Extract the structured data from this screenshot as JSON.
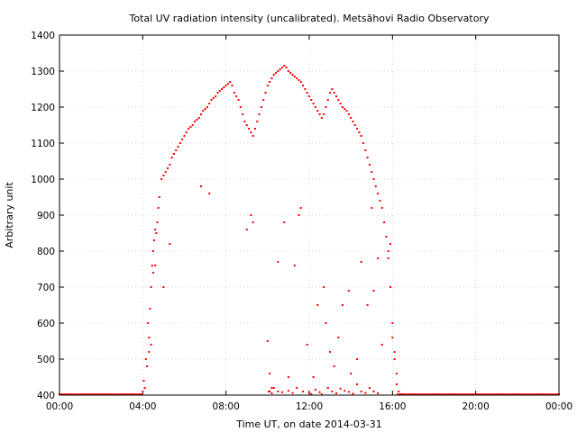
{
  "chart_data": {
    "type": "scatter",
    "title": "Total UV radiation intensity (uncalibrated). Metsähovi Radio Observatory",
    "xlabel": "Time UT, on date 2014-03-31",
    "ylabel": "Arbitrary unit",
    "xlim": [
      0,
      24
    ],
    "ylim": [
      400,
      1400
    ],
    "xticks": [
      {
        "value": 0,
        "label": "00:00"
      },
      {
        "value": 4,
        "label": "04:00"
      },
      {
        "value": 8,
        "label": "08:00"
      },
      {
        "value": 12,
        "label": "12:00"
      },
      {
        "value": 16,
        "label": "16:00"
      },
      {
        "value": 20,
        "label": "20:00"
      },
      {
        "value": 24,
        "label": "00:00"
      }
    ],
    "yticks": [
      400,
      500,
      600,
      700,
      800,
      900,
      1000,
      1100,
      1200,
      1300,
      1400
    ],
    "grid": true,
    "series": [
      {
        "color": "#ff0000",
        "marker": "point",
        "x": [
          0,
          0.5,
          1,
          1.5,
          2,
          2.5,
          3,
          3.5,
          3.9,
          4.0,
          4.05,
          4.1,
          4.15,
          4.2,
          4.25,
          4.3,
          4.35,
          4.4,
          4.45,
          4.5,
          4.55,
          4.6,
          4.65,
          4.7,
          4.75,
          4.8,
          4.9,
          5.0,
          5.1,
          5.2,
          5.3,
          5.4,
          5.5,
          5.6,
          5.7,
          5.8,
          5.9,
          6.0,
          6.1,
          6.2,
          6.3,
          6.4,
          6.5,
          6.6,
          6.7,
          6.8,
          6.9,
          7.0,
          7.1,
          7.2,
          7.3,
          7.4,
          7.5,
          7.6,
          7.7,
          7.8,
          7.9,
          8.0,
          8.1,
          8.2,
          8.3,
          8.4,
          8.5,
          8.6,
          8.7,
          8.8,
          8.9,
          9.0,
          9.1,
          9.2,
          9.3,
          9.4,
          9.5,
          9.6,
          9.7,
          9.8,
          9.9,
          10.0,
          10.1,
          10.2,
          10.3,
          10.4,
          10.5,
          10.6,
          10.7,
          10.8,
          10.9,
          11.0,
          11.1,
          11.2,
          11.3,
          11.4,
          11.5,
          11.6,
          11.7,
          11.8,
          11.9,
          12.0,
          12.1,
          12.2,
          12.3,
          12.4,
          12.5,
          12.6,
          12.7,
          12.8,
          12.9,
          13.0,
          13.1,
          13.2,
          13.3,
          13.4,
          13.5,
          13.6,
          13.7,
          13.8,
          13.9,
          14.0,
          14.1,
          14.2,
          14.3,
          14.4,
          14.5,
          14.6,
          14.7,
          14.8,
          14.9,
          15.0,
          15.1,
          15.2,
          15.3,
          15.4,
          15.5,
          15.6,
          15.7,
          15.8,
          15.9,
          16.0,
          16.1,
          16.2,
          16.3,
          16.4,
          16.5,
          17,
          18,
          19,
          20,
          21,
          22,
          23,
          24,
          4.3,
          4.4,
          4.5,
          4.6,
          5.0,
          5.3,
          6.8,
          7.2,
          9.0,
          9.2,
          9.3,
          10.0,
          10.1,
          10.2,
          10.5,
          10.8,
          11.0,
          11.3,
          11.5,
          11.6,
          11.9,
          12.2,
          12.4,
          12.7,
          12.8,
          13.0,
          13.2,
          13.4,
          13.6,
          13.9,
          14.0,
          14.3,
          14.5,
          14.8,
          15.0,
          15.1,
          15.3,
          15.5,
          15.8,
          15.9,
          16.0,
          16.1,
          16.2,
          10.05,
          10.1,
          10.2,
          10.3,
          10.5,
          10.7,
          11.0,
          11.2,
          11.4,
          11.7,
          12.0,
          12.1,
          12.3,
          12.5,
          12.6,
          12.9,
          13.1,
          13.3,
          13.5,
          13.7,
          13.9,
          14.1,
          14.3,
          14.5,
          14.7,
          14.9,
          15.1,
          15.3
        ],
        "y": [
          402,
          402,
          402,
          402,
          402,
          402,
          402,
          402,
          402,
          410,
          440,
          420,
          500,
          480,
          600,
          560,
          640,
          700,
          760,
          800,
          830,
          860,
          850,
          880,
          920,
          950,
          1000,
          1010,
          1020,
          1030,
          1040,
          1060,
          1070,
          1080,
          1090,
          1100,
          1110,
          1120,
          1130,
          1140,
          1145,
          1150,
          1160,
          1165,
          1170,
          1180,
          1190,
          1195,
          1200,
          1210,
          1220,
          1225,
          1230,
          1240,
          1245,
          1250,
          1255,
          1260,
          1265,
          1270,
          1260,
          1240,
          1230,
          1220,
          1200,
          1180,
          1160,
          1150,
          1140,
          1130,
          1120,
          1140,
          1160,
          1180,
          1200,
          1220,
          1240,
          1260,
          1270,
          1280,
          1290,
          1295,
          1300,
          1305,
          1310,
          1315,
          1310,
          1300,
          1295,
          1290,
          1285,
          1280,
          1275,
          1270,
          1260,
          1250,
          1240,
          1230,
          1220,
          1210,
          1200,
          1190,
          1180,
          1170,
          1180,
          1200,
          1220,
          1240,
          1250,
          1240,
          1230,
          1220,
          1210,
          1200,
          1195,
          1190,
          1180,
          1170,
          1160,
          1150,
          1140,
          1130,
          1120,
          1100,
          1080,
          1060,
          1040,
          1020,
          1000,
          980,
          960,
          940,
          920,
          880,
          840,
          780,
          700,
          600,
          500,
          430,
          410,
          402,
          402,
          402,
          402,
          402,
          402,
          402,
          402,
          402,
          402,
          520,
          540,
          740,
          760,
          700,
          820,
          980,
          960,
          860,
          900,
          880,
          550,
          460,
          420,
          770,
          880,
          450,
          760,
          900,
          920,
          540,
          450,
          650,
          700,
          600,
          520,
          480,
          560,
          650,
          690,
          460,
          500,
          770,
          650,
          920,
          690,
          780,
          540,
          800,
          820,
          560,
          520,
          460,
          410,
          410,
          405,
          420,
          410,
          408,
          412,
          406,
          420,
          410,
          407,
          403,
          415,
          408,
          402,
          420,
          410,
          405,
          418,
          412,
          409,
          404,
          430,
          410,
          406,
          420,
          410,
          405
        ]
      }
    ]
  }
}
